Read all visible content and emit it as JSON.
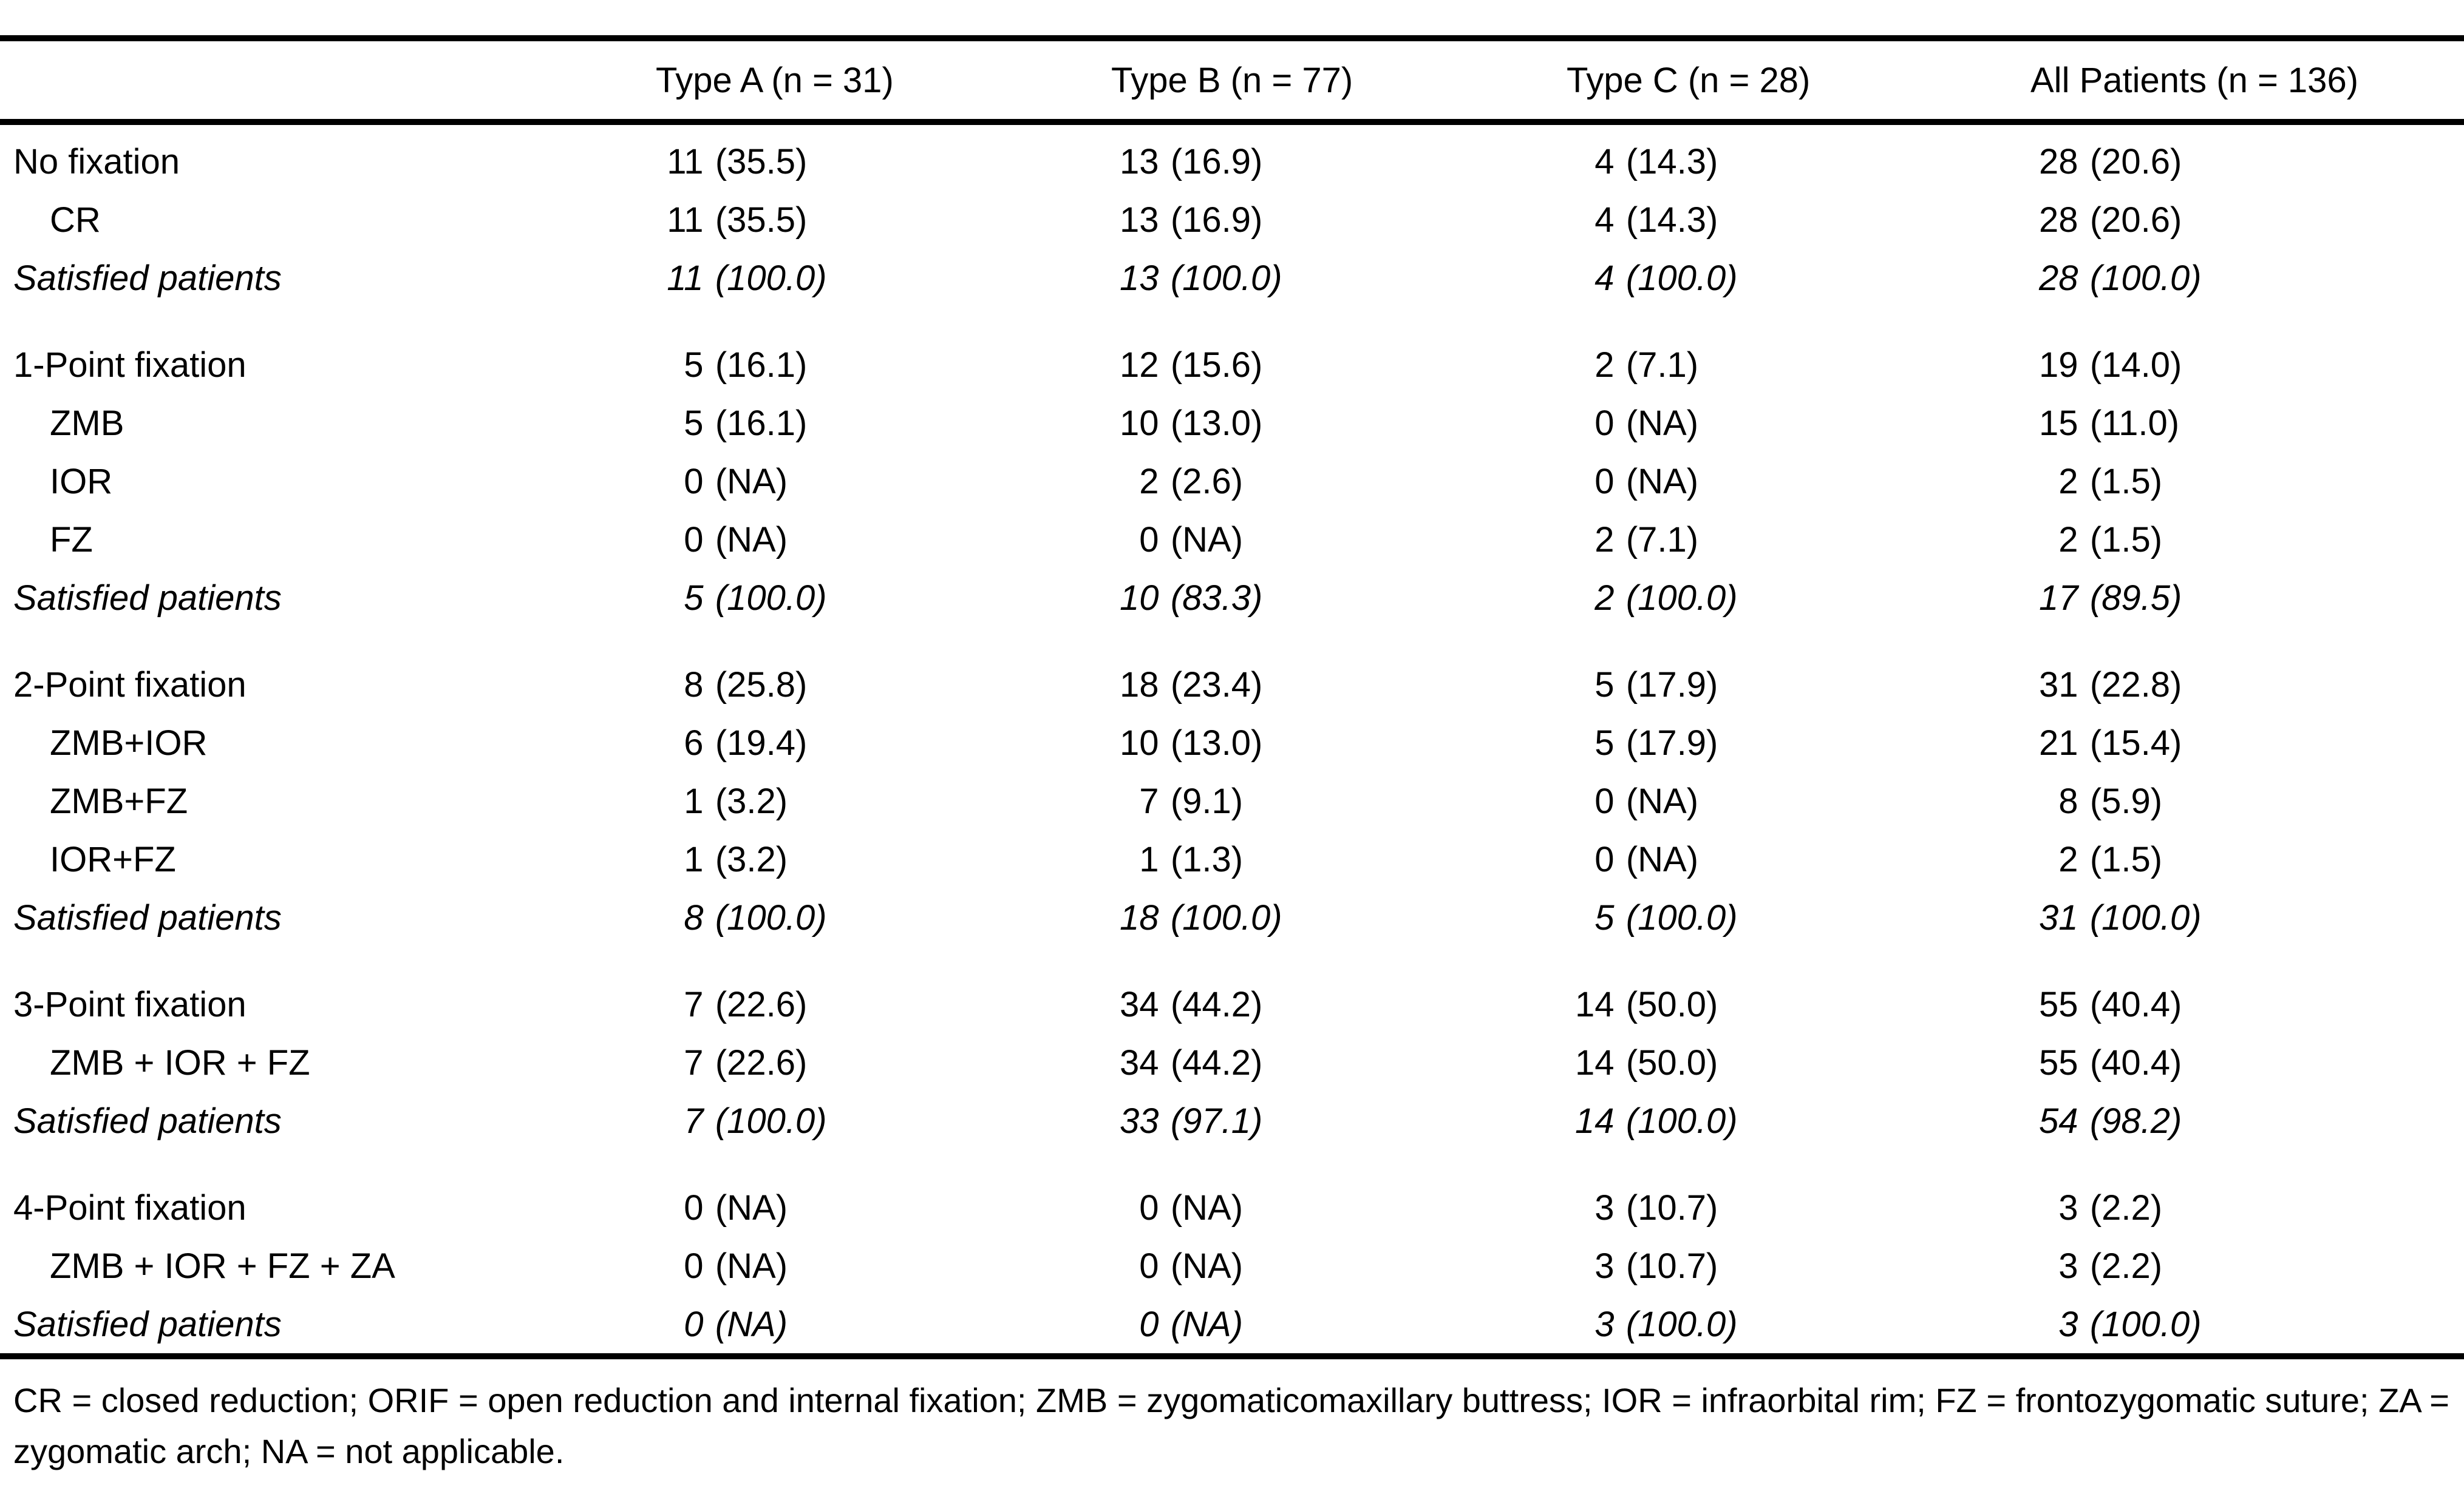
{
  "table": {
    "columns": [
      "",
      "Type A (n = 31)",
      "Type B (n = 77)",
      "Type C (n = 28)",
      "All Patients (n = 136)"
    ],
    "sections": [
      {
        "rows": [
          {
            "label": "No fixation",
            "indent": false,
            "italic": false,
            "values": [
              "11 (35.5)",
              "13 (16.9)",
              "4 (14.3)",
              "28 (20.6)"
            ]
          },
          {
            "label": "CR",
            "indent": true,
            "italic": false,
            "values": [
              "11 (35.5)",
              "13 (16.9)",
              "4 (14.3)",
              "28 (20.6)"
            ]
          },
          {
            "label": "Satisfied patients",
            "indent": false,
            "italic": true,
            "values": [
              "11 (100.0)",
              "13 (100.0)",
              "4 (100.0)",
              "28 (100.0)"
            ]
          }
        ]
      },
      {
        "rows": [
          {
            "label": "1-Point fixation",
            "indent": false,
            "italic": false,
            "values": [
              "5 (16.1)",
              "12 (15.6)",
              "2 (7.1)",
              "19 (14.0)"
            ]
          },
          {
            "label": "ZMB",
            "indent": true,
            "italic": false,
            "values": [
              "5 (16.1)",
              "10 (13.0)",
              "0 (NA)",
              "15 (11.0)"
            ]
          },
          {
            "label": "IOR",
            "indent": true,
            "italic": false,
            "values": [
              "0 (NA)",
              "2 (2.6)",
              "0 (NA)",
              "2 (1.5)"
            ]
          },
          {
            "label": "FZ",
            "indent": true,
            "italic": false,
            "values": [
              "0 (NA)",
              "0 (NA)",
              "2 (7.1)",
              "2 (1.5)"
            ]
          },
          {
            "label": "Satisfied patients",
            "indent": false,
            "italic": true,
            "values": [
              "5 (100.0)",
              "10 (83.3)",
              "2 (100.0)",
              "17 (89.5)"
            ]
          }
        ]
      },
      {
        "rows": [
          {
            "label": "2-Point fixation",
            "indent": false,
            "italic": false,
            "values": [
              "8 (25.8)",
              "18 (23.4)",
              "5 (17.9)",
              "31 (22.8)"
            ]
          },
          {
            "label": "ZMB+IOR",
            "indent": true,
            "italic": false,
            "values": [
              "6 (19.4)",
              "10 (13.0)",
              "5 (17.9)",
              "21 (15.4)"
            ]
          },
          {
            "label": "ZMB+FZ",
            "indent": true,
            "italic": false,
            "values": [
              "1 (3.2)",
              "7 (9.1)",
              "0 (NA)",
              "8 (5.9)"
            ]
          },
          {
            "label": "IOR+FZ",
            "indent": true,
            "italic": false,
            "values": [
              "1 (3.2)",
              "1 (1.3)",
              "0 (NA)",
              "2 (1.5)"
            ]
          },
          {
            "label": "Satisfied patients",
            "indent": false,
            "italic": true,
            "values": [
              "8 (100.0)",
              "18 (100.0)",
              "5 (100.0)",
              "31 (100.0)"
            ]
          }
        ]
      },
      {
        "rows": [
          {
            "label": "3-Point fixation",
            "indent": false,
            "italic": false,
            "values": [
              "7 (22.6)",
              "34 (44.2)",
              "14 (50.0)",
              "55 (40.4)"
            ]
          },
          {
            "label": "ZMB + IOR + FZ",
            "indent": true,
            "italic": false,
            "values": [
              "7 (22.6)",
              "34 (44.2)",
              "14 (50.0)",
              "55 (40.4)"
            ]
          },
          {
            "label": "Satisfied patients",
            "indent": false,
            "italic": true,
            "values": [
              "7 (100.0)",
              "33 (97.1)",
              "14 (100.0)",
              "54 (98.2)"
            ]
          }
        ]
      },
      {
        "rows": [
          {
            "label": "4-Point fixation",
            "indent": false,
            "italic": false,
            "values": [
              "0 (NA)",
              "0 (NA)",
              "3 (10.7)",
              "3 (2.2)"
            ]
          },
          {
            "label": "ZMB + IOR + FZ + ZA",
            "indent": true,
            "italic": false,
            "values": [
              "0 (NA)",
              "0 (NA)",
              "3 (10.7)",
              "3 (2.2)"
            ]
          },
          {
            "label": "Satisfied patients",
            "indent": false,
            "italic": true,
            "values": [
              "0 (NA)",
              "0 (NA)",
              "3 (100.0)",
              "3 (100.0)"
            ]
          }
        ]
      }
    ]
  },
  "footnote": "CR = closed reduction; ORIF = open reduction and internal fixation; ZMB = zygomaticomaxillary buttress; IOR = infraorbital rim; FZ = frontozygomatic suture; ZA = zygomatic arch; NA = not applicable.",
  "colors": {
    "text": "#000000",
    "background": "#ffffff",
    "rule": "#000000"
  }
}
